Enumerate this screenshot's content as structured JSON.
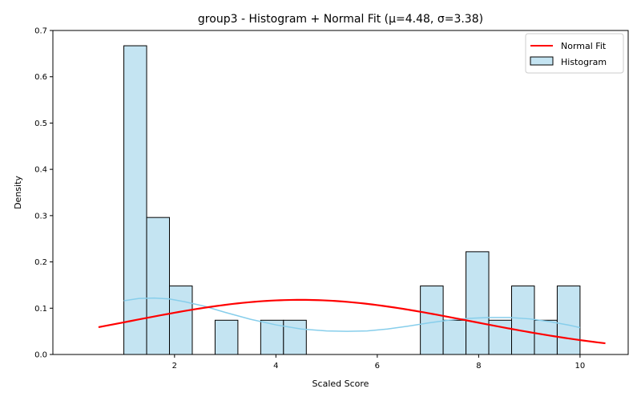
{
  "chart_data": {
    "type": "bar",
    "title": "group3 - Histogram + Normal Fit (μ=4.48, σ=3.38)",
    "xlabel": "Scaled Score",
    "ylabel": "Density",
    "xlim": [
      -0.4,
      10.95
    ],
    "ylim": [
      0,
      0.7
    ],
    "xticks": [
      2,
      4,
      6,
      8,
      10
    ],
    "yticks": [
      0.0,
      0.1,
      0.2,
      0.3,
      0.4,
      0.5,
      0.6,
      0.7
    ],
    "grid": false,
    "legend_position": "top-right",
    "histogram": {
      "name": "Histogram",
      "fill": "#c4e4f2",
      "edge": "#000000",
      "bins": [
        {
          "x0": 1.0,
          "x1": 1.45,
          "density": 0.667
        },
        {
          "x0": 1.45,
          "x1": 1.9,
          "density": 0.296
        },
        {
          "x0": 1.9,
          "x1": 2.35,
          "density": 0.148
        },
        {
          "x0": 2.8,
          "x1": 3.25,
          "density": 0.074
        },
        {
          "x0": 3.7,
          "x1": 4.15,
          "density": 0.074
        },
        {
          "x0": 4.15,
          "x1": 4.6,
          "density": 0.074
        },
        {
          "x0": 6.85,
          "x1": 7.3,
          "density": 0.148
        },
        {
          "x0": 7.3,
          "x1": 7.75,
          "density": 0.074
        },
        {
          "x0": 7.75,
          "x1": 8.2,
          "density": 0.222
        },
        {
          "x0": 8.2,
          "x1": 8.65,
          "density": 0.074
        },
        {
          "x0": 8.65,
          "x1": 9.1,
          "density": 0.148
        },
        {
          "x0": 9.1,
          "x1": 9.55,
          "density": 0.074
        },
        {
          "x0": 9.55,
          "x1": 10.0,
          "density": 0.148
        }
      ]
    },
    "kde": {
      "color": "#87ceeb",
      "x": [
        1.0,
        1.3,
        1.6,
        1.9,
        2.2,
        2.6,
        3.0,
        3.5,
        4.0,
        4.5,
        5.0,
        5.4,
        5.8,
        6.2,
        6.6,
        7.0,
        7.4,
        7.8,
        8.2,
        8.6,
        9.0,
        9.4,
        9.8,
        10.0
      ],
      "y": [
        0.116,
        0.121,
        0.122,
        0.12,
        0.114,
        0.104,
        0.091,
        0.076,
        0.064,
        0.055,
        0.051,
        0.05,
        0.051,
        0.055,
        0.061,
        0.068,
        0.074,
        0.078,
        0.08,
        0.08,
        0.077,
        0.071,
        0.063,
        0.058
      ]
    },
    "series": [
      {
        "name": "Normal Fit",
        "color": "#ff0000",
        "mu": 4.48,
        "sigma": 3.38,
        "x_range": [
          0.5,
          10.5
        ]
      }
    ]
  }
}
